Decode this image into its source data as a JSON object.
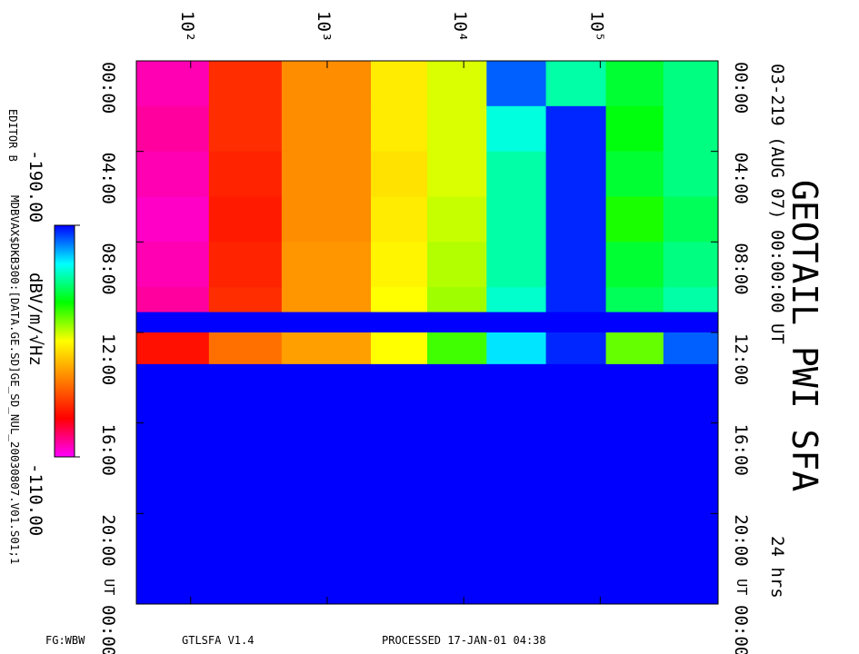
{
  "chart_data": {
    "type": "heatmap",
    "title": "GEOTAIL PWI SFA",
    "subtitle": "03-219 (AUG 07) 00:00:00 UT",
    "duration": "24 hrs",
    "time_unit": "UT",
    "editor": "EDITOR B",
    "file": "MDBVAX$DKB300:[DATA.GE.SD]GE_SD_NUL_20030807.V01.S01;1",
    "footer": [
      "FG:WBW",
      "GTLSFA   V1.4",
      "PROCESSED 17-JAN-01   04:38"
    ],
    "colorbar_label": "dBV/m/√Hz",
    "colorbar_ticks": [
      {
        "value": -190,
        "label": "-190.00"
      },
      {
        "value": -110,
        "label": "-110.00"
      }
    ],
    "colorscale": [
      "#0000ff",
      "#00ffff",
      "#00ff00",
      "#ffff00",
      "#ff8000",
      "#ff0000",
      "#ff00ff"
    ],
    "clim": [
      -190,
      -110
    ],
    "missing_color": "#0000ff",
    "xscale": "log",
    "xlim": [
      40,
      730000
    ],
    "xticks": [
      {
        "value": 100,
        "label": "10²"
      },
      {
        "value": 1000,
        "label": "10³"
      },
      {
        "value": 10000,
        "label": "10⁴"
      },
      {
        "value": 100000,
        "label": "10⁵"
      }
    ],
    "ylim": [
      0,
      24
    ],
    "yticks": [
      {
        "value": 0,
        "label": "00:00"
      },
      {
        "value": 4,
        "label": "04:00"
      },
      {
        "value": 8,
        "label": "08:00"
      },
      {
        "value": 12,
        "label": "12:00"
      },
      {
        "value": 16,
        "label": "16:00"
      },
      {
        "value": 20,
        "label": "20:00"
      },
      {
        "value": 24,
        "label": "00:00"
      }
    ],
    "x_bins": [
      40,
      136,
      464,
      2090,
      5400,
      14700,
      40000,
      110000,
      290000,
      730000
    ],
    "y_bins": [
      0,
      2,
      4,
      6,
      8,
      10,
      11.1,
      12,
      13.4,
      24
    ],
    "values": [
      [
        -114,
        -128,
        -138,
        -148,
        -152,
        -185,
        -172,
        -166,
        -170
      ],
      [
        -115,
        -128,
        -138,
        -148,
        -152,
        -175,
        -188,
        -164,
        -170
      ],
      [
        -114,
        -127,
        -138,
        -147,
        -152,
        -172,
        -188,
        -166,
        -170
      ],
      [
        -113,
        -126,
        -138,
        -148,
        -153,
        -172,
        -188,
        -162,
        -168
      ],
      [
        -114,
        -127,
        -139,
        -149,
        -154,
        -172,
        -188,
        -166,
        -170
      ],
      [
        -115,
        -128,
        -139,
        -150,
        -155,
        -174,
        -188,
        -168,
        -172
      ],
      [
        null,
        null,
        null,
        null,
        null,
        null,
        null,
        null,
        null
      ],
      [
        -125,
        -135,
        -140,
        -150,
        -160,
        -178,
        -188,
        -158,
        -185
      ],
      [
        -190,
        -190,
        -190,
        -190,
        -190,
        -190,
        -190,
        -190,
        -190
      ]
    ]
  }
}
